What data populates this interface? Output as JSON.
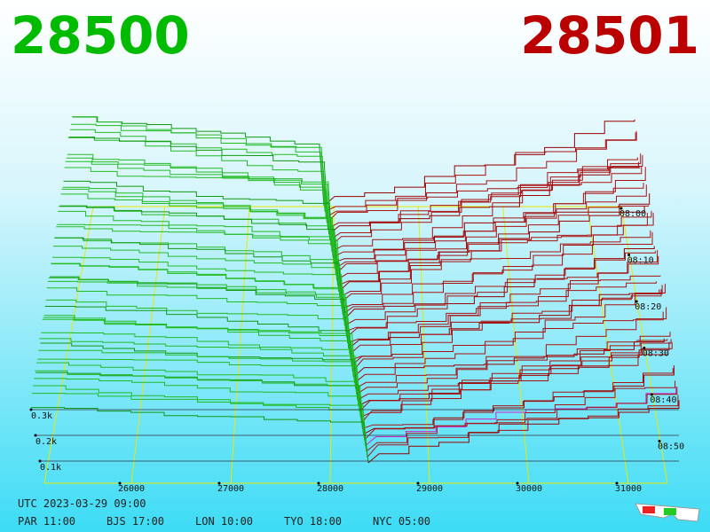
{
  "header": {
    "bid": 28500,
    "ask": 28501
  },
  "price_axis": {
    "ticks": [
      26000,
      27000,
      28000,
      29000,
      30000,
      31000
    ]
  },
  "time_axis": {
    "labels": [
      "08:00",
      "08:10",
      "08:20",
      "08:30",
      "08:40",
      "08:50"
    ]
  },
  "depth_axis": {
    "labels": [
      "0.3k",
      "0.2k",
      "0.1k"
    ]
  },
  "footer": {
    "utc": "UTC 2023-03-29 09:00",
    "clocks": [
      "PAR 11:00",
      "BJS 17:00",
      "LON 10:00",
      "TYO 18:00",
      "NYC 05:00"
    ]
  }
}
